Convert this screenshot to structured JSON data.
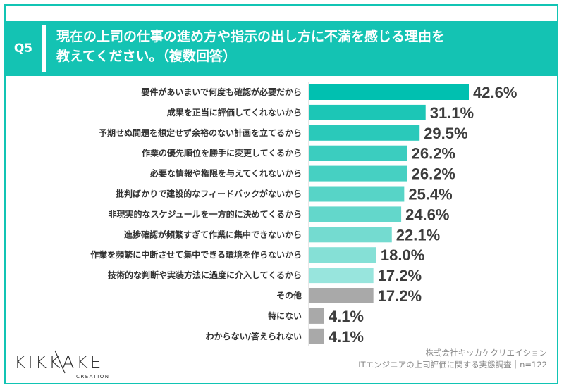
{
  "header": {
    "badge": "Q5",
    "title_line1": "現在の上司の仕事の進め方や指示の出し方に不満を感じる理由を",
    "title_line2": "教えてください。（複数回答）"
  },
  "chart_data": {
    "type": "bar",
    "orientation": "horizontal",
    "categories": [
      "要件があいまいで何度も確認が必要だから",
      "成果を正当に評価してくれないから",
      "予期せぬ問題を想定せず余裕のない計画を立てるから",
      "作業の優先順位を勝手に変更してくるから",
      "必要な情報や権限を与えてくれないから",
      "批判ばかりで建設的なフィードバックがないから",
      "非現実的なスケジュールを一方的に決めてくるから",
      "進捗確認が頻繁すぎて作業に集中できないから",
      "作業を頻繁に中断させて集中できる環境を作らないから",
      "技術的な判断や実装方法に過度に介入してくるから",
      "その他",
      "特にない",
      "わからない/答えられない"
    ],
    "values": [
      42.6,
      31.1,
      29.5,
      26.2,
      26.2,
      25.4,
      24.6,
      22.1,
      18.0,
      17.2,
      17.2,
      4.1,
      4.1
    ],
    "value_labels": [
      "42.6%",
      "31.1%",
      "29.5%",
      "26.2%",
      "26.2%",
      "25.4%",
      "24.6%",
      "22.1%",
      "18.0%",
      "17.2%",
      "17.2%",
      "4.1%",
      "4.1%"
    ],
    "colors": [
      "#00c0b0",
      "#1cc6b6",
      "#2ac9ba",
      "#3bcdbf",
      "#46d0c2",
      "#57d4c7",
      "#63d7cb",
      "#74dbd0",
      "#85e0d6",
      "#98e5dd",
      "#a9a9a9",
      "#a9a9a9",
      "#a9a9a9"
    ],
    "xlim": [
      0,
      50
    ]
  },
  "logo": {
    "word": "KIKKAKE",
    "sub": "CREATION"
  },
  "source": {
    "line1": "株式会社キッカケクリエイション",
    "line2": "ITエンジニアの上司評価に関する実態調査｜n=122"
  }
}
